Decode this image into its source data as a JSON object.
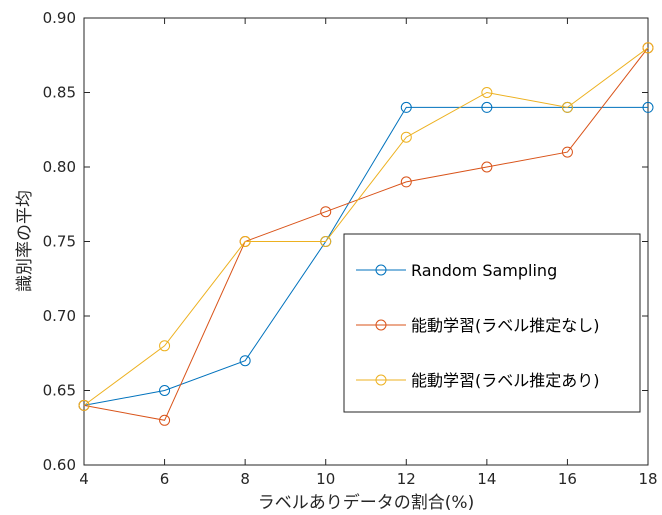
{
  "chart_data": {
    "type": "line",
    "title": "",
    "xlabel": "ラベルありデータの割合(%)",
    "ylabel": "識別率の平均",
    "x": [
      4,
      6,
      8,
      10,
      12,
      14,
      16,
      18
    ],
    "xlim": [
      4,
      18
    ],
    "ylim": [
      0.6,
      0.9
    ],
    "xticks": [
      "4",
      "6",
      "8",
      "10",
      "12",
      "14",
      "16",
      "18"
    ],
    "yticks": [
      "0.60",
      "0.65",
      "0.70",
      "0.75",
      "0.80",
      "0.85",
      "0.90"
    ],
    "grid": false,
    "legend_position": "lower-right",
    "marker": "open-circle",
    "series": [
      {
        "name": "Random Sampling",
        "color": "#0072BD",
        "values": [
          0.64,
          0.65,
          0.67,
          0.75,
          0.84,
          0.84,
          0.84,
          0.84
        ]
      },
      {
        "name": "能動学習(ラベル推定なし)",
        "color": "#D95319",
        "values": [
          0.64,
          0.63,
          0.75,
          0.77,
          0.79,
          0.8,
          0.81,
          0.88
        ]
      },
      {
        "name": "能動学習(ラベル推定あり)",
        "color": "#EDB120",
        "values": [
          0.64,
          0.68,
          0.75,
          0.75,
          0.82,
          0.85,
          0.84,
          0.88
        ]
      }
    ]
  }
}
